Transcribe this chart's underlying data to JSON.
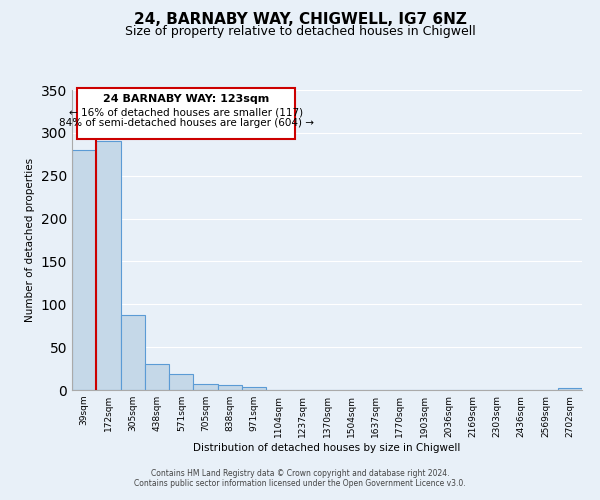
{
  "title": "24, BARNABY WAY, CHIGWELL, IG7 6NZ",
  "subtitle": "Size of property relative to detached houses in Chigwell",
  "xlabel": "Distribution of detached houses by size in Chigwell",
  "ylabel": "Number of detached properties",
  "bar_labels": [
    "39sqm",
    "172sqm",
    "305sqm",
    "438sqm",
    "571sqm",
    "705sqm",
    "838sqm",
    "971sqm",
    "1104sqm",
    "1237sqm",
    "1370sqm",
    "1504sqm",
    "1637sqm",
    "1770sqm",
    "1903sqm",
    "2036sqm",
    "2169sqm",
    "2303sqm",
    "2436sqm",
    "2569sqm",
    "2702sqm"
  ],
  "bar_values": [
    280,
    291,
    88,
    30,
    19,
    7,
    6,
    3,
    0,
    0,
    0,
    0,
    0,
    0,
    0,
    0,
    0,
    0,
    0,
    0,
    2
  ],
  "bar_color": "#c5d8e8",
  "bar_edge_color": "#5b9bd5",
  "ylim": [
    0,
    350
  ],
  "yticks": [
    0,
    50,
    100,
    150,
    200,
    250,
    300,
    350
  ],
  "marker_color": "#cc0000",
  "annotation_title": "24 BARNABY WAY: 123sqm",
  "annotation_line1": "← 16% of detached houses are smaller (117)",
  "annotation_line2": "84% of semi-detached houses are larger (604) →",
  "footer_line1": "Contains HM Land Registry data © Crown copyright and database right 2024.",
  "footer_line2": "Contains public sector information licensed under the Open Government Licence v3.0.",
  "background_color": "#e8f0f8",
  "plot_bg_color": "#e8f0f8",
  "grid_color": "#ffffff",
  "title_fontsize": 11,
  "subtitle_fontsize": 9,
  "annotation_box_color": "#ffffff",
  "annotation_box_edge": "#cc0000"
}
